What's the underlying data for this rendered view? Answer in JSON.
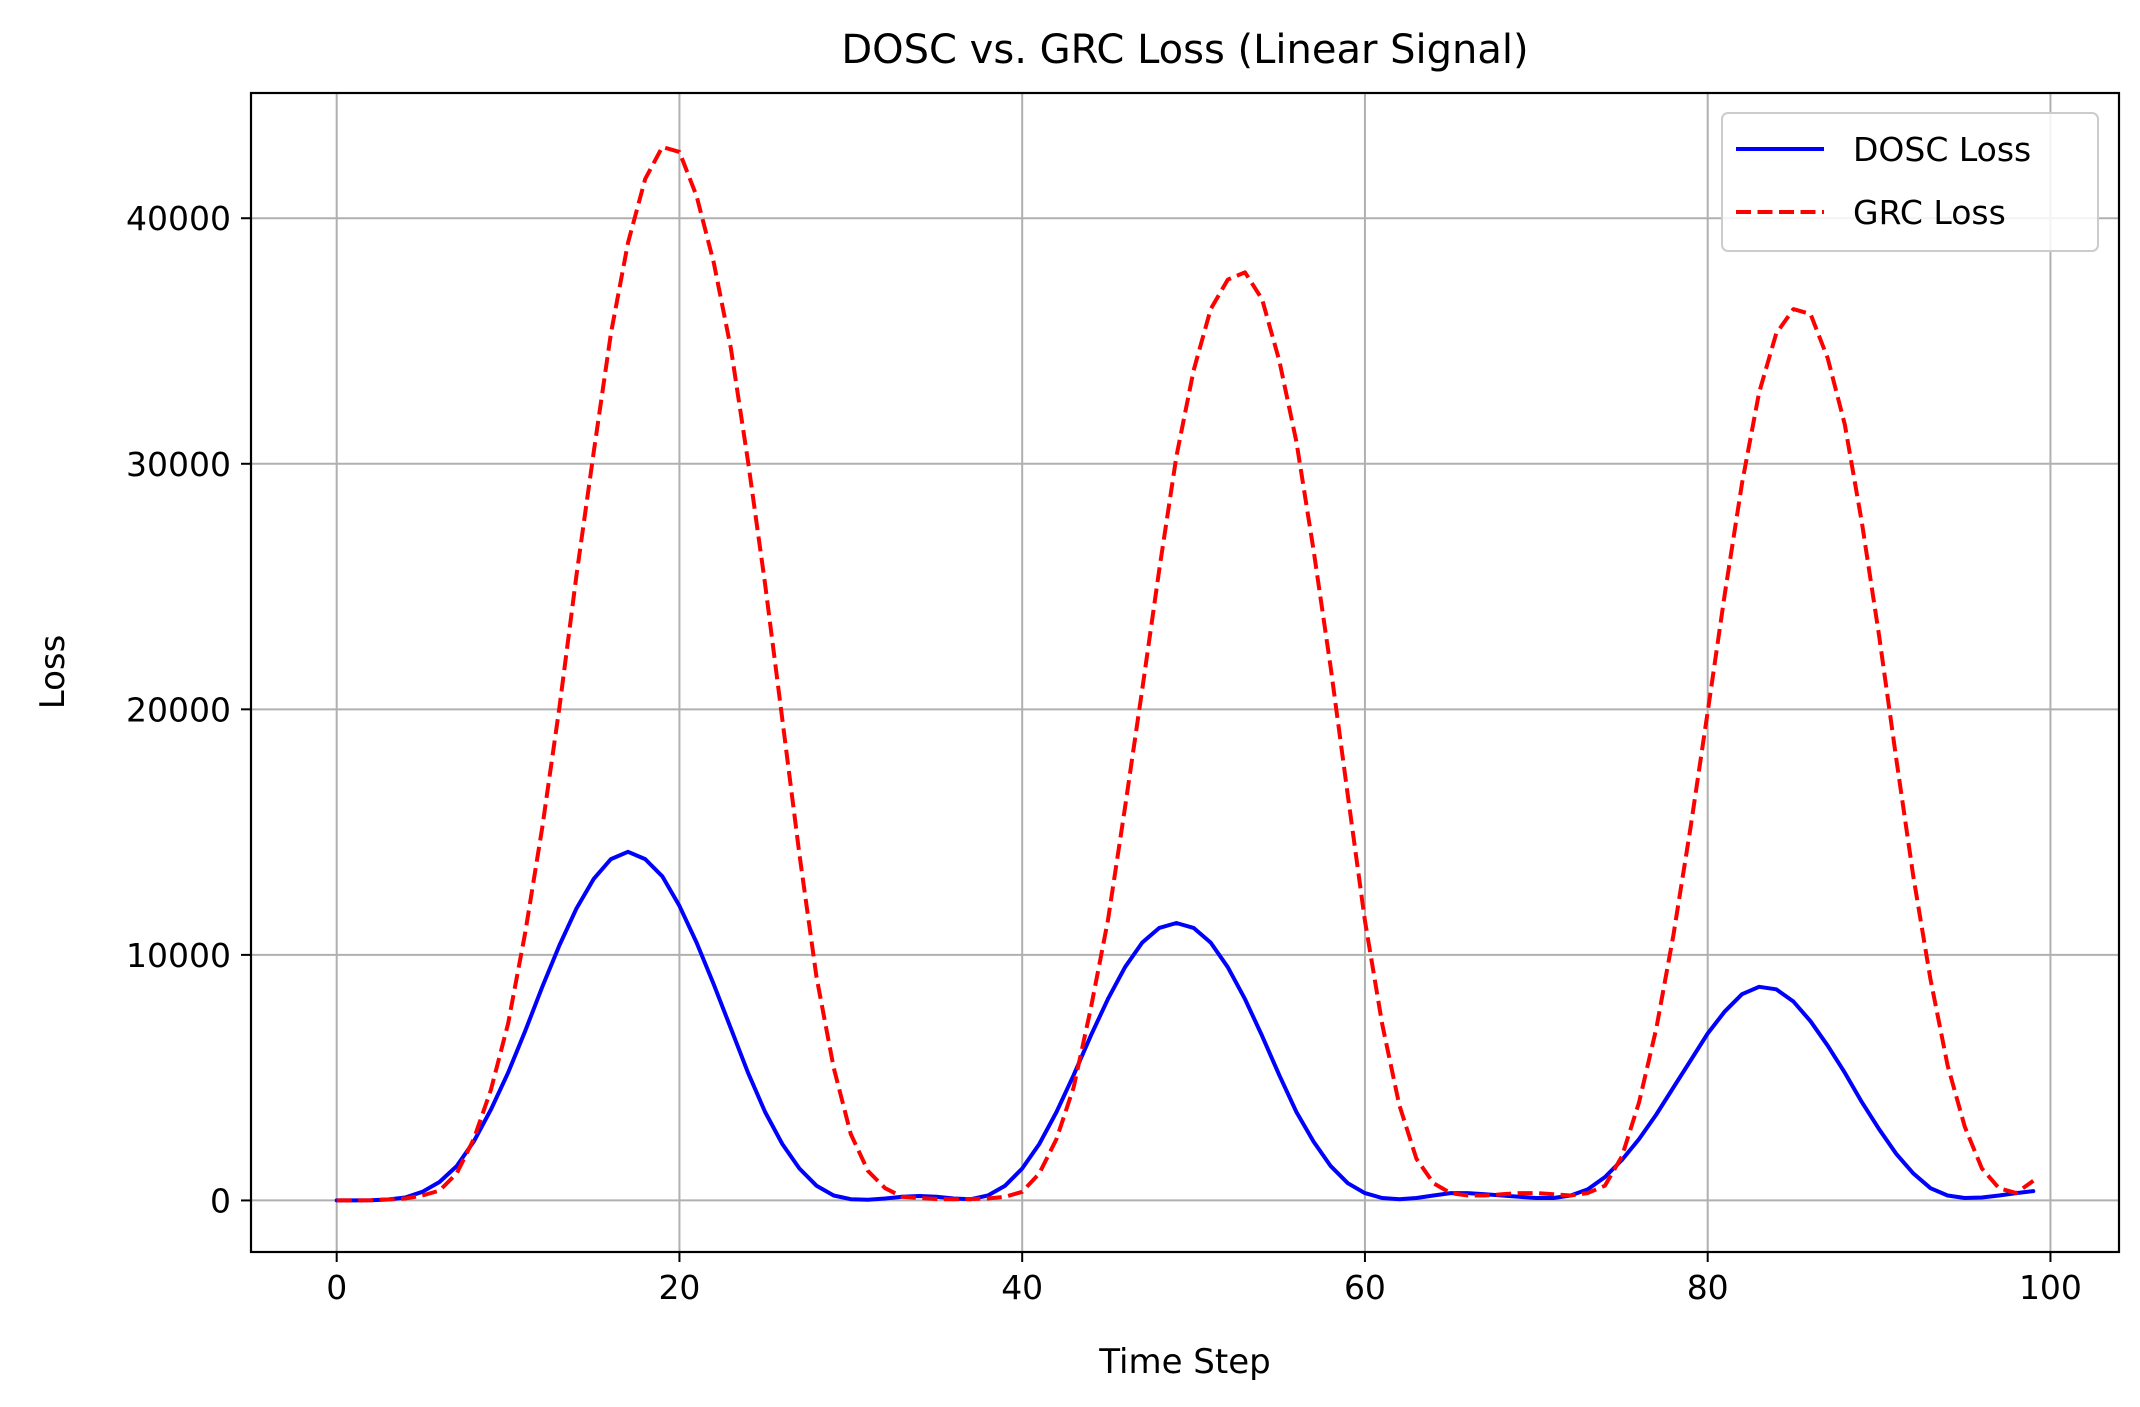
{
  "chart_data": {
    "type": "line",
    "title": "DOSC vs. GRC Loss (Linear Signal)",
    "xlabel": "Time Step",
    "ylabel": "Loss",
    "xlim": [
      -5,
      104
    ],
    "ylim": [
      -2100,
      45100
    ],
    "xticks": [
      0,
      20,
      40,
      60,
      80,
      100
    ],
    "yticks": [
      0,
      10000,
      20000,
      30000,
      40000
    ],
    "grid": true,
    "legend_position": "top-right",
    "series": [
      {
        "name": "DOSC Loss",
        "color": "#0000ff",
        "style": "solid",
        "x": [
          0,
          1,
          2,
          3,
          4,
          5,
          6,
          7,
          8,
          9,
          10,
          11,
          12,
          13,
          14,
          15,
          16,
          17,
          18,
          19,
          20,
          21,
          22,
          23,
          24,
          25,
          26,
          27,
          28,
          29,
          30,
          31,
          32,
          33,
          34,
          35,
          36,
          37,
          38,
          39,
          40,
          41,
          42,
          43,
          44,
          45,
          46,
          47,
          48,
          49,
          50,
          51,
          52,
          53,
          54,
          55,
          56,
          57,
          58,
          59,
          60,
          61,
          62,
          63,
          64,
          65,
          66,
          67,
          68,
          69,
          70,
          71,
          72,
          73,
          74,
          75,
          76,
          77,
          78,
          79,
          80,
          81,
          82,
          83,
          84,
          85,
          86,
          87,
          88,
          89,
          90,
          91,
          92,
          93,
          94,
          95,
          96,
          97,
          98,
          99
        ],
        "y": [
          0,
          0,
          10,
          40,
          120,
          350,
          750,
          1400,
          2400,
          3700,
          5200,
          6900,
          8700,
          10400,
          11900,
          13100,
          13900,
          14200,
          13900,
          13200,
          12000,
          10500,
          8800,
          7000,
          5200,
          3600,
          2300,
          1300,
          600,
          200,
          50,
          30,
          80,
          150,
          180,
          150,
          80,
          50,
          200,
          600,
          1300,
          2300,
          3600,
          5100,
          6700,
          8200,
          9500,
          10500,
          11100,
          11300,
          11100,
          10500,
          9500,
          8200,
          6700,
          5100,
          3600,
          2400,
          1400,
          700,
          300,
          100,
          50,
          100,
          200,
          300,
          300,
          250,
          200,
          150,
          100,
          100,
          200,
          450,
          950,
          1650,
          2500,
          3500,
          4600,
          5700,
          6800,
          7700,
          8400,
          8700,
          8600,
          8100,
          7300,
          6300,
          5200,
          4000,
          2900,
          1900,
          1100,
          500,
          200,
          100,
          120,
          200,
          300,
          380
        ]
      },
      {
        "name": "GRC Loss",
        "color": "#ff0000",
        "style": "dashed",
        "x": [
          0,
          1,
          2,
          3,
          4,
          5,
          6,
          7,
          8,
          9,
          10,
          11,
          12,
          13,
          14,
          15,
          16,
          17,
          18,
          19,
          20,
          21,
          22,
          23,
          24,
          25,
          26,
          27,
          28,
          29,
          30,
          31,
          32,
          33,
          34,
          35,
          36,
          37,
          38,
          39,
          40,
          41,
          42,
          43,
          44,
          45,
          46,
          47,
          48,
          49,
          50,
          51,
          52,
          53,
          54,
          55,
          56,
          57,
          58,
          59,
          60,
          61,
          62,
          63,
          64,
          65,
          66,
          67,
          68,
          69,
          70,
          71,
          72,
          73,
          74,
          75,
          76,
          77,
          78,
          79,
          80,
          81,
          82,
          83,
          84,
          85,
          86,
          87,
          88,
          89,
          90,
          91,
          92,
          93,
          94,
          95,
          96,
          97,
          98,
          99
        ],
        "y": [
          0,
          0,
          10,
          40,
          80,
          200,
          400,
          1100,
          2500,
          4500,
          7200,
          10900,
          15200,
          20100,
          25500,
          30500,
          35300,
          39000,
          41600,
          42900,
          42700,
          40900,
          38200,
          34700,
          30100,
          25100,
          19600,
          14100,
          9100,
          5400,
          2700,
          1200,
          500,
          150,
          100,
          60,
          50,
          60,
          80,
          150,
          350,
          1100,
          2500,
          4600,
          7800,
          11400,
          16000,
          20800,
          25700,
          30300,
          33800,
          36300,
          37500,
          37800,
          36700,
          34200,
          30900,
          26500,
          21700,
          16500,
          11400,
          7200,
          3900,
          1700,
          700,
          300,
          200,
          200,
          250,
          300,
          300,
          250,
          200,
          300,
          600,
          1800,
          4000,
          7000,
          10800,
          15200,
          19900,
          24700,
          29200,
          32900,
          35300,
          36300,
          36100,
          34300,
          31600,
          27600,
          23000,
          18000,
          13200,
          9000,
          5500,
          3000,
          1300,
          500,
          300,
          800
        ]
      }
    ]
  }
}
